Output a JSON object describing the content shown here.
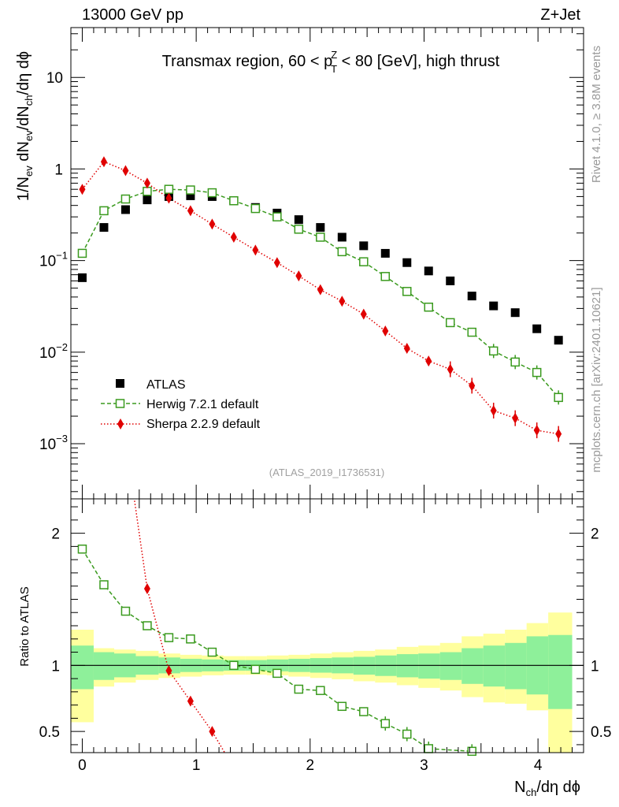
{
  "header": {
    "left": "13000 GeV pp",
    "right": "Z+Jet"
  },
  "side": {
    "rivet": "Rivet 4.1.0, ≥ 3.8M events",
    "mcplots": "mcplots.cern.ch [arXiv:2401.10621]"
  },
  "colors": {
    "atlas": "#000000",
    "herwig": "#3a9a1e",
    "sherpa": "#e00000",
    "band_inner": "#8ef09a",
    "band_outer": "#ffff9e"
  },
  "chart_data": [
    {
      "type": "scatter",
      "name": "main",
      "title": "Transmax region, 60 < p_T^Z < 80 [GeV], high thrust",
      "title_parts": [
        "Transmax region, 60 < p",
        "Z",
        "T",
        " < 80 [GeV], high thrust"
      ],
      "ylabel": "1/N_ev dN_ev/dN_ch/dη dϕ",
      "ylabel_parts": [
        "1/N",
        "ev",
        " dN",
        "ev",
        "/dN",
        "ch",
        "/dη dϕ"
      ],
      "yscale": "log",
      "ylim": [
        0.00025,
        35
      ],
      "xlim": [
        -0.1,
        4.4
      ],
      "yticks": [
        {
          "value": 10,
          "base": "10",
          "exp": ""
        },
        {
          "value": 1,
          "base": "1",
          "exp": ""
        },
        {
          "value": 0.1,
          "base": "10",
          "exp": "−1"
        },
        {
          "value": 0.01,
          "base": "10",
          "exp": "−2"
        },
        {
          "value": 0.001,
          "base": "10",
          "exp": "−3"
        }
      ],
      "watermark": "(ATLAS_2019_I1736531)",
      "legend_position": "bottom-left",
      "legend": [
        "ATLAS",
        "Herwig 7.2.1 default",
        "Sherpa 2.2.9 default"
      ],
      "series": [
        {
          "name": "ATLAS",
          "x": [
            0.0,
            0.19,
            0.38,
            0.57,
            0.76,
            0.95,
            1.14,
            1.33,
            1.52,
            1.71,
            1.9,
            2.09,
            2.28,
            2.47,
            2.66,
            2.85,
            3.04,
            3.23,
            3.42,
            3.61,
            3.8,
            3.99,
            4.18
          ],
          "values": [
            0.065,
            0.23,
            0.36,
            0.46,
            0.5,
            0.51,
            0.5,
            0.45,
            0.38,
            0.33,
            0.28,
            0.23,
            0.18,
            0.145,
            0.12,
            0.095,
            0.077,
            0.06,
            0.041,
            0.032,
            0.027,
            0.018,
            0.0135
          ]
        },
        {
          "name": "Herwig 7.2.1 default",
          "x": [
            0.0,
            0.19,
            0.38,
            0.57,
            0.76,
            0.95,
            1.14,
            1.33,
            1.52,
            1.71,
            1.9,
            2.09,
            2.28,
            2.47,
            2.66,
            2.85,
            3.04,
            3.23,
            3.42,
            3.61,
            3.8,
            3.99,
            4.18
          ],
          "values": [
            0.12,
            0.35,
            0.47,
            0.57,
            0.6,
            0.59,
            0.55,
            0.45,
            0.37,
            0.3,
            0.22,
            0.18,
            0.125,
            0.097,
            0.067,
            0.046,
            0.031,
            0.021,
            0.0165,
            0.0103,
            0.0078,
            0.006,
            0.0032
          ]
        },
        {
          "name": "Sherpa 2.2.9 default",
          "x": [
            0.0,
            0.19,
            0.38,
            0.57,
            0.76,
            0.95,
            1.14,
            1.33,
            1.52,
            1.71,
            1.9,
            2.09,
            2.28,
            2.47,
            2.66,
            2.85,
            3.04,
            3.23,
            3.42,
            3.61,
            3.8,
            3.99,
            4.18
          ],
          "values": [
            0.6,
            1.2,
            0.96,
            0.7,
            0.48,
            0.35,
            0.25,
            0.18,
            0.13,
            0.095,
            0.068,
            0.048,
            0.036,
            0.026,
            0.017,
            0.011,
            0.008,
            0.0065,
            0.0043,
            0.0023,
            0.0019,
            0.0014,
            0.00128
          ]
        }
      ]
    },
    {
      "type": "line",
      "name": "ratio",
      "ylabel": "Ratio to ATLAS",
      "xlabel": "N_ch/dη dϕ",
      "xlabel_parts": [
        "N",
        "ch",
        "/dη dϕ"
      ],
      "xlim": [
        -0.1,
        4.4
      ],
      "ylim": [
        0.34,
        2.26
      ],
      "xticks": [
        {
          "value": 0,
          "label": "0"
        },
        {
          "value": 1,
          "label": "1"
        },
        {
          "value": 2,
          "label": "2"
        },
        {
          "value": 3,
          "label": "3"
        },
        {
          "value": 4,
          "label": "4"
        }
      ],
      "yticks": [
        {
          "value": 0.5,
          "label": "0.5"
        },
        {
          "value": 1,
          "label": "1"
        },
        {
          "value": 2,
          "label": "2"
        }
      ],
      "bands": {
        "edges": [
          -0.1,
          0.1,
          0.28,
          0.47,
          0.67,
          0.86,
          1.05,
          1.24,
          1.43,
          1.62,
          1.81,
          2.0,
          2.19,
          2.38,
          2.57,
          2.76,
          2.95,
          3.14,
          3.33,
          3.52,
          3.71,
          3.9,
          4.09,
          4.3
        ],
        "inner_low": [
          0.82,
          0.89,
          0.91,
          0.93,
          0.94,
          0.95,
          0.955,
          0.96,
          0.96,
          0.955,
          0.95,
          0.945,
          0.94,
          0.93,
          0.92,
          0.91,
          0.9,
          0.89,
          0.86,
          0.84,
          0.82,
          0.78,
          0.67
        ],
        "inner_high": [
          1.15,
          1.1,
          1.09,
          1.07,
          1.06,
          1.05,
          1.045,
          1.04,
          1.04,
          1.045,
          1.05,
          1.055,
          1.06,
          1.065,
          1.075,
          1.085,
          1.09,
          1.1,
          1.13,
          1.15,
          1.17,
          1.22,
          1.23
        ],
        "outer_low": [
          0.57,
          0.84,
          0.87,
          0.89,
          0.905,
          0.915,
          0.925,
          0.93,
          0.93,
          0.925,
          0.915,
          0.905,
          0.895,
          0.88,
          0.87,
          0.85,
          0.83,
          0.81,
          0.76,
          0.72,
          0.71,
          0.66,
          0.34
        ],
        "outer_high": [
          1.27,
          1.13,
          1.12,
          1.11,
          1.09,
          1.08,
          1.075,
          1.07,
          1.07,
          1.075,
          1.08,
          1.09,
          1.1,
          1.11,
          1.12,
          1.14,
          1.15,
          1.17,
          1.22,
          1.24,
          1.27,
          1.32,
          1.4
        ]
      },
      "series": [
        {
          "name": "Herwig 7.2.1 default",
          "x": [
            0.0,
            0.19,
            0.38,
            0.57,
            0.76,
            0.95,
            1.14,
            1.33,
            1.52,
            1.71,
            1.9,
            2.09,
            2.28,
            2.47,
            2.66,
            2.85,
            3.04,
            3.42
          ],
          "values": [
            1.88,
            1.61,
            1.41,
            1.3,
            1.21,
            1.2,
            1.1,
            1.0,
            0.97,
            0.94,
            0.82,
            0.81,
            0.69,
            0.65,
            0.56,
            0.48,
            0.37,
            0.35
          ]
        },
        {
          "name": "Sherpa 2.2.9 default",
          "x": [
            0.4,
            0.57,
            0.76,
            0.95,
            1.14,
            1.25
          ],
          "values": [
            2.6,
            1.58,
            0.96,
            0.73,
            0.5,
            0.34
          ],
          "marker_count": 4
        }
      ]
    }
  ]
}
